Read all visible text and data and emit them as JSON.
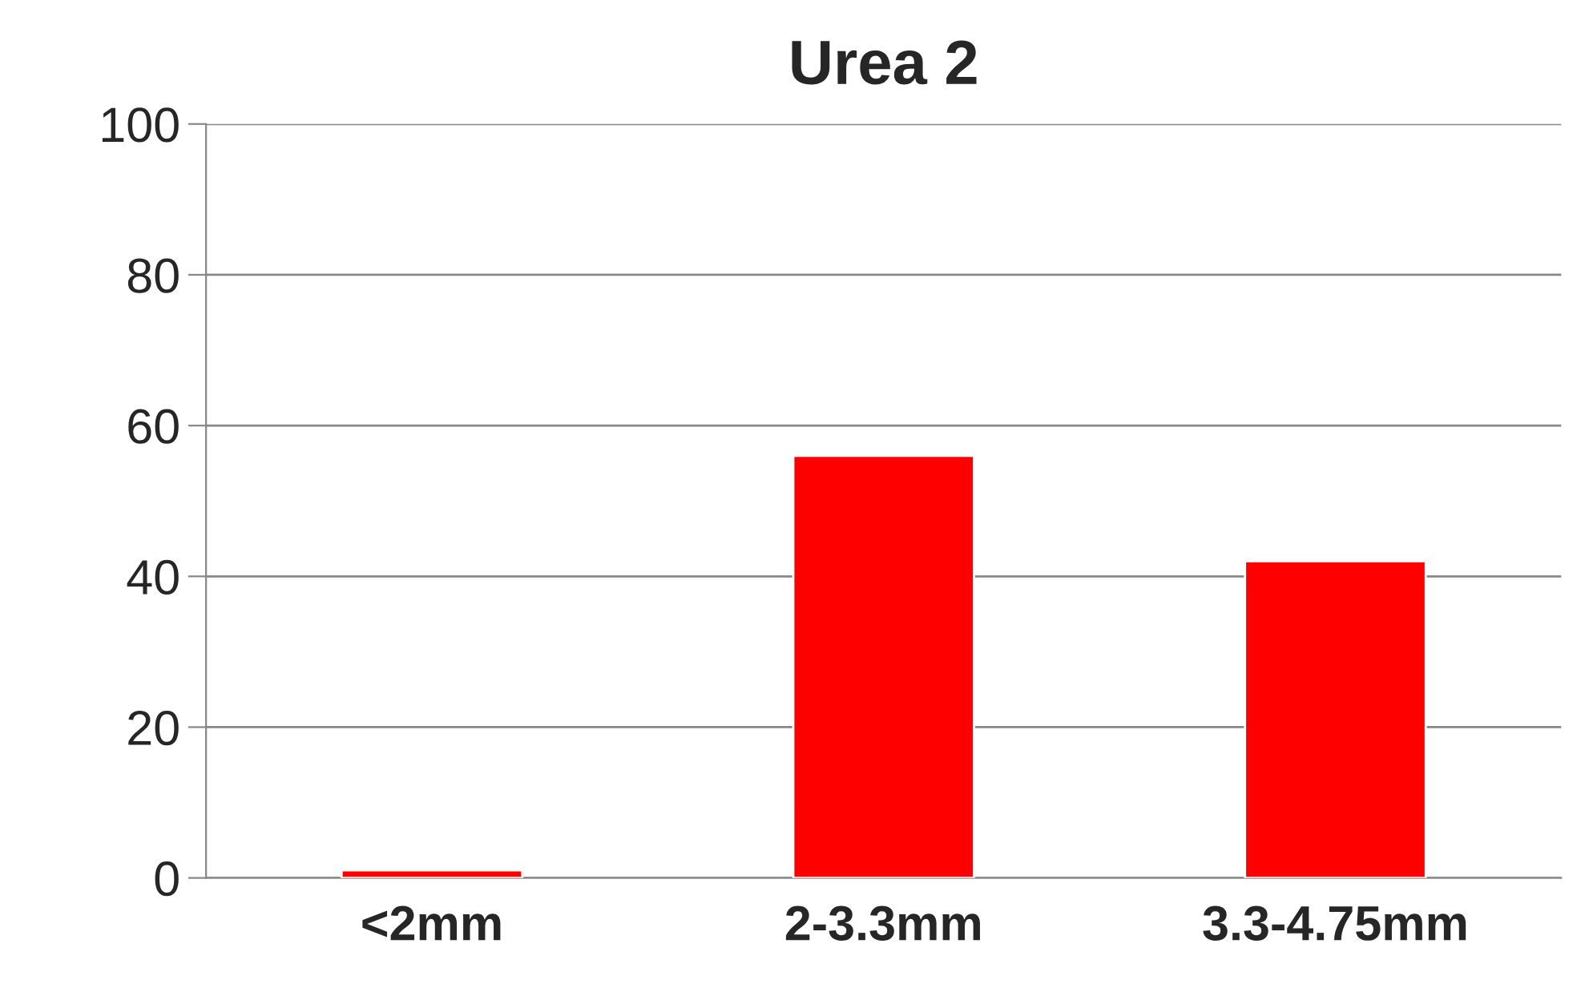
{
  "chart_data": {
    "type": "bar",
    "title": "Urea 2",
    "categories": [
      "<2mm",
      "2-3.3mm",
      "3.3-4.75mm"
    ],
    "values": [
      1,
      56,
      42
    ],
    "color": "#ff0000",
    "ylim": [
      0,
      100
    ],
    "yticks": [
      0,
      20,
      40,
      60,
      80,
      100
    ],
    "grid": "y"
  }
}
